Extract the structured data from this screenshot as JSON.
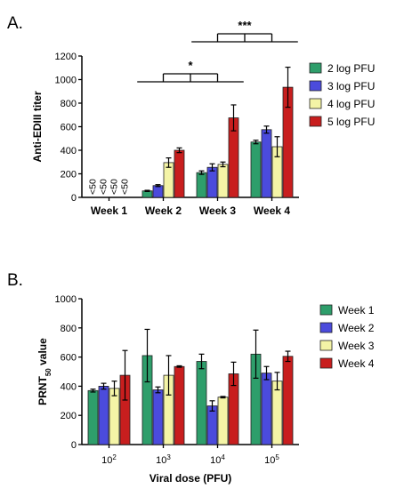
{
  "colors": {
    "green": "#2e9e6b",
    "blue": "#4b4bdc",
    "yellow": "#f4f4a6",
    "red": "#c81e1e"
  },
  "chart_data": [
    {
      "type": "bar",
      "panel_label": "A.",
      "ylabel": "Anti-EDIII titer",
      "xlabel": "",
      "ylim": [
        0,
        1200
      ],
      "yticks": [
        "0",
        "200",
        "400",
        "600",
        "800",
        "1000",
        "1200"
      ],
      "categories": [
        "Week 1",
        "Week 2",
        "Week 3",
        "Week 4"
      ],
      "legend_position": "right",
      "series": [
        {
          "name": "2 log PFU",
          "color": "#2e9e6b",
          "values": [
            null,
            55,
            210,
            470
          ],
          "errors": [
            null,
            5,
            15,
            15
          ]
        },
        {
          "name": "3 log PFU",
          "color": "#4b4bdc",
          "values": [
            null,
            100,
            255,
            575
          ],
          "errors": [
            null,
            8,
            30,
            30
          ]
        },
        {
          "name": "4 log PFU",
          "color": "#f4f4a6",
          "values": [
            null,
            295,
            280,
            430
          ],
          "errors": [
            null,
            40,
            20,
            85
          ]
        },
        {
          "name": "5 log PFU",
          "color": "#c81e1e",
          "values": [
            null,
            400,
            675,
            935
          ],
          "errors": [
            null,
            20,
            110,
            170
          ]
        }
      ],
      "below_limit_labels": [
        "<50",
        "<50",
        "<50",
        "<50"
      ],
      "significance": [
        {
          "label": "*",
          "between": [
            "Week 2",
            "Week 3"
          ]
        },
        {
          "label": "***",
          "between": [
            "Week 3",
            "Week 4"
          ]
        }
      ]
    },
    {
      "type": "bar",
      "panel_label": "B.",
      "ylabel_main": "PRNT",
      "ylabel_sub": "50",
      "ylabel_tail": " value",
      "xlabel": "Viral dose (PFU)",
      "ylim": [
        0,
        1000
      ],
      "yticks": [
        "0",
        "200",
        "400",
        "600",
        "800",
        "1000"
      ],
      "categories": [
        {
          "base": "10",
          "exp": "2"
        },
        {
          "base": "10",
          "exp": "3"
        },
        {
          "base": "10",
          "exp": "4"
        },
        {
          "base": "10",
          "exp": "5"
        }
      ],
      "legend_position": "right",
      "series": [
        {
          "name": "Week 1",
          "color": "#2e9e6b",
          "values": [
            370,
            610,
            570,
            620
          ],
          "errors": [
            10,
            180,
            50,
            165
          ]
        },
        {
          "name": "Week 2",
          "color": "#4b4bdc",
          "values": [
            400,
            375,
            265,
            490
          ],
          "errors": [
            20,
            20,
            35,
            45
          ]
        },
        {
          "name": "Week 3",
          "color": "#f4f4a6",
          "values": [
            385,
            475,
            325,
            435
          ],
          "errors": [
            50,
            135,
            5,
            60
          ]
        },
        {
          "name": "Week 4",
          "color": "#c81e1e",
          "values": [
            475,
            535,
            485,
            605
          ],
          "errors": [
            170,
            5,
            80,
            35
          ]
        }
      ]
    }
  ]
}
